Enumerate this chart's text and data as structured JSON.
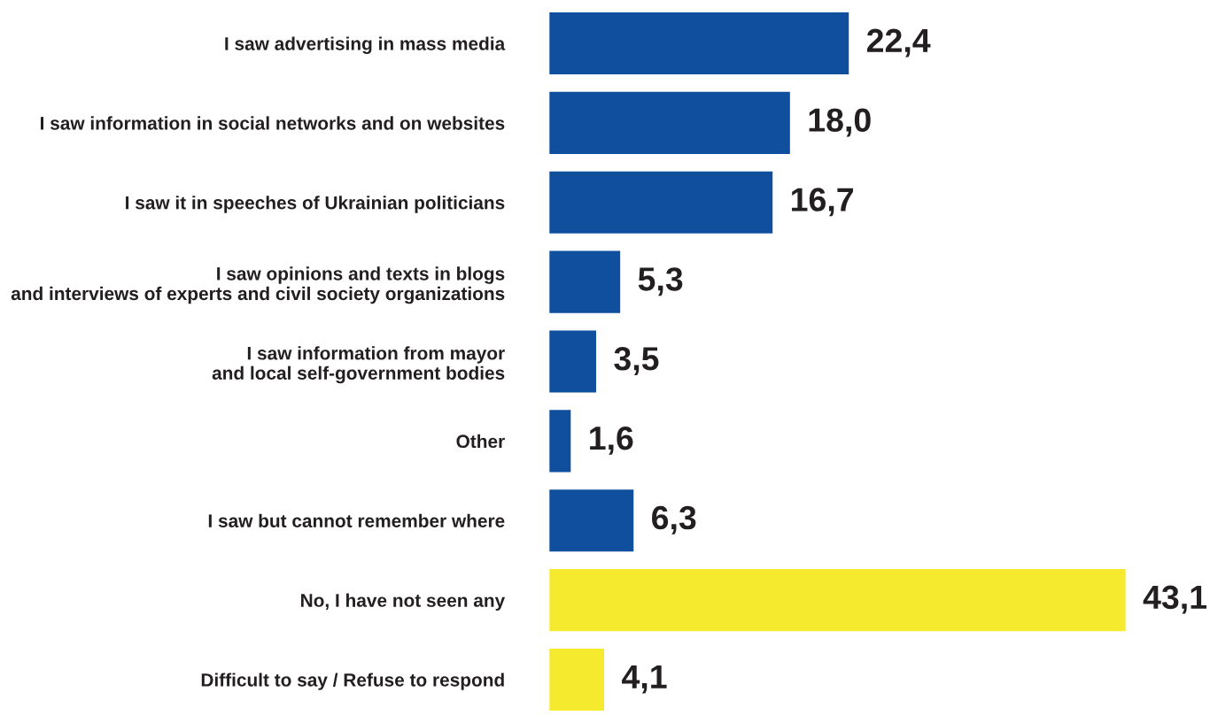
{
  "chart_data": {
    "type": "bar",
    "orientation": "horizontal",
    "categories": [
      "I saw advertising in mass media",
      "I saw information in social networks and on websites",
      "I saw it in speeches of Ukrainian politicians",
      "I saw opinions and texts in blogs\nand interviews of experts and civil society organizations",
      "I saw information from mayor\nand local self-government bodies",
      "Other",
      "I saw but cannot remember where",
      "No, I have not seen any",
      "Difficult to say / Refuse to respond"
    ],
    "values": [
      22.4,
      18.0,
      16.7,
      5.3,
      3.5,
      1.6,
      6.3,
      43.1,
      4.1
    ],
    "value_labels": [
      "22,4",
      "18,0",
      "16,7",
      "5,3",
      "3,5",
      "1,6",
      "6,3",
      "43,1",
      "4,1"
    ],
    "colors": [
      "#0f4f9e",
      "#0f4f9e",
      "#0f4f9e",
      "#0f4f9e",
      "#0f4f9e",
      "#0f4f9e",
      "#0f4f9e",
      "#f5ea2e",
      "#f5ea2e"
    ],
    "grid": false,
    "legend": false
  }
}
